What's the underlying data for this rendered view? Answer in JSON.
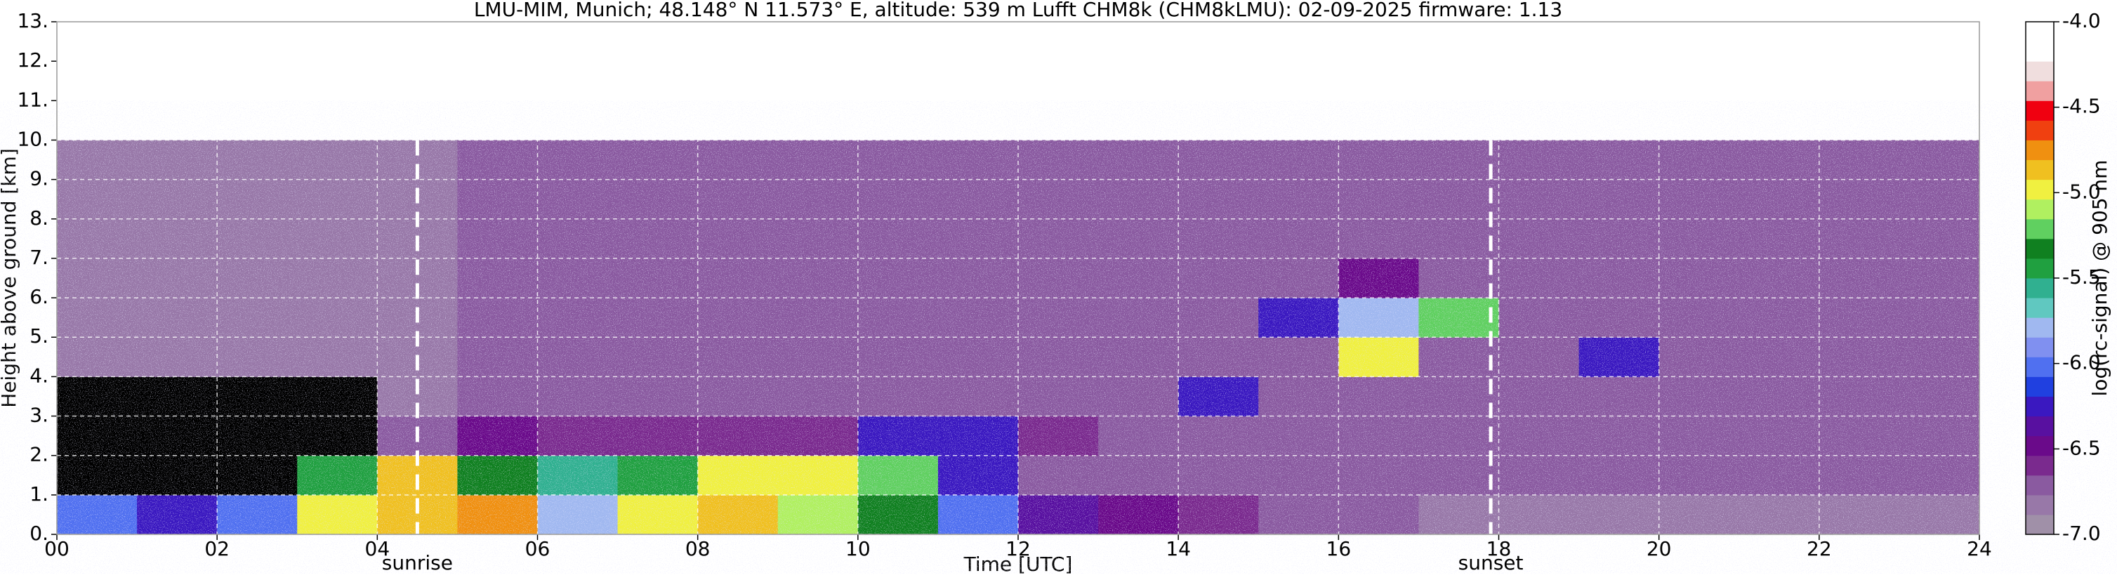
{
  "chart_data": {
    "type": "heatmap",
    "title": "LMU-MIM, Munich; 48.148° N 11.573° E, altitude: 539 m    Lufft CHM8k (CHM8kLMU): 02-09-2025    firmware: 1.13",
    "x_label": "Time [UTC]",
    "y_label": "Height above ground [km]",
    "xlim": [
      0,
      24
    ],
    "ylim": [
      0,
      13
    ],
    "xticks": [
      {
        "value": 0,
        "label": "00"
      },
      {
        "value": 2,
        "label": "02"
      },
      {
        "value": 4,
        "label": "04"
      },
      {
        "value": 6,
        "label": "06"
      },
      {
        "value": 8,
        "label": "08"
      },
      {
        "value": 10,
        "label": "10"
      },
      {
        "value": 12,
        "label": "12"
      },
      {
        "value": 14,
        "label": "14"
      },
      {
        "value": 16,
        "label": "16"
      },
      {
        "value": 18,
        "label": "18"
      },
      {
        "value": 20,
        "label": "20"
      },
      {
        "value": 22,
        "label": "22"
      },
      {
        "value": 24,
        "label": "24"
      }
    ],
    "yticks": [
      {
        "value": 0,
        "label": "0."
      },
      {
        "value": 1,
        "label": "1."
      },
      {
        "value": 2,
        "label": "2."
      },
      {
        "value": 3,
        "label": "3."
      },
      {
        "value": 4,
        "label": "4."
      },
      {
        "value": 5,
        "label": "5."
      },
      {
        "value": 6,
        "label": "6."
      },
      {
        "value": 7,
        "label": "7."
      },
      {
        "value": 8,
        "label": "8."
      },
      {
        "value": 9,
        "label": "9."
      },
      {
        "value": 10,
        "label": "10."
      },
      {
        "value": 11,
        "label": "11."
      },
      {
        "value": 12,
        "label": "12."
      },
      {
        "value": 13,
        "label": "13."
      }
    ],
    "grid": true,
    "x_bins": [
      0,
      1,
      2,
      3,
      4,
      5,
      6,
      7,
      8,
      9,
      10,
      11,
      12,
      13,
      14,
      15,
      16,
      17,
      18,
      19,
      20,
      21,
      22,
      23,
      24
    ],
    "y_bins": [
      0,
      1,
      2,
      3,
      4,
      5,
      6,
      7,
      8,
      9,
      10
    ],
    "z": [
      [
        -6.0,
        -6.2,
        -6.0,
        -5.0,
        -4.9,
        -4.8,
        -5.8,
        -5.0,
        -4.9,
        -5.1,
        -5.3,
        -6.0,
        -6.4,
        -6.5,
        -6.6,
        -6.7,
        -6.7,
        -6.8,
        -6.8,
        -6.8,
        -6.8,
        -6.8,
        -6.8,
        -6.8
      ],
      [
        null,
        null,
        null,
        -5.4,
        -4.9,
        -5.3,
        -5.6,
        -5.5,
        -5.0,
        -5.0,
        -5.2,
        -6.3,
        -6.7,
        -6.7,
        -6.7,
        -6.7,
        -6.7,
        -6.7,
        -6.7,
        -6.7,
        -6.7,
        -6.7,
        -6.7,
        -6.7
      ],
      [
        null,
        null,
        null,
        null,
        -6.7,
        -6.5,
        -6.6,
        -6.6,
        -6.6,
        -6.6,
        -6.3,
        -6.3,
        -6.6,
        -6.7,
        -6.7,
        -6.7,
        -6.7,
        -6.7,
        -6.7,
        -6.7,
        -6.7,
        -6.7,
        -6.7,
        -6.7
      ],
      [
        null,
        null,
        null,
        null,
        -6.8,
        -6.7,
        -6.7,
        -6.7,
        -6.7,
        -6.7,
        -6.7,
        -6.7,
        -6.7,
        -6.7,
        -6.2,
        -6.7,
        -6.7,
        -6.7,
        -6.7,
        -6.7,
        -6.7,
        -6.7,
        -6.7,
        -6.7
      ],
      [
        -6.8,
        -6.8,
        -6.8,
        -6.8,
        -6.8,
        -6.7,
        -6.7,
        -6.7,
        -6.7,
        -6.7,
        -6.7,
        -6.7,
        -6.7,
        -6.7,
        -6.7,
        -6.7,
        -5.0,
        -6.7,
        -6.7,
        -6.2,
        -6.7,
        -6.7,
        -6.7,
        -6.7
      ],
      [
        -6.8,
        -6.8,
        -6.8,
        -6.8,
        -6.8,
        -6.7,
        -6.7,
        -6.7,
        -6.7,
        -6.7,
        -6.7,
        -6.7,
        -6.7,
        -6.7,
        -6.7,
        -6.3,
        -5.8,
        -5.2,
        -6.7,
        -6.7,
        -6.7,
        -6.7,
        -6.7,
        -6.7
      ],
      [
        -6.8,
        -6.8,
        -6.8,
        -6.8,
        -6.8,
        -6.7,
        -6.7,
        -6.7,
        -6.7,
        -6.7,
        -6.7,
        -6.7,
        -6.7,
        -6.7,
        -6.7,
        -6.7,
        -6.5,
        -6.7,
        -6.7,
        -6.7,
        -6.7,
        -6.7,
        -6.7,
        -6.7
      ],
      [
        -6.8,
        -6.8,
        -6.8,
        -6.8,
        -6.8,
        -6.7,
        -6.7,
        -6.7,
        -6.7,
        -6.7,
        -6.7,
        -6.7,
        -6.7,
        -6.7,
        -6.7,
        -6.7,
        -6.7,
        -6.7,
        -6.7,
        -6.7,
        -6.7,
        -6.7,
        -6.7,
        -6.7
      ],
      [
        -6.8,
        -6.8,
        -6.8,
        -6.8,
        -6.8,
        -6.7,
        -6.7,
        -6.7,
        -6.7,
        -6.7,
        -6.7,
        -6.7,
        -6.7,
        -6.7,
        -6.7,
        -6.7,
        -6.7,
        -6.7,
        -6.7,
        -6.7,
        -6.7,
        -6.7,
        -6.7,
        -6.7
      ],
      [
        -6.8,
        -6.8,
        -6.8,
        -6.8,
        -6.8,
        -6.7,
        -6.7,
        -6.7,
        -6.7,
        -6.7,
        -6.7,
        -6.7,
        -6.7,
        -6.7,
        -6.7,
        -6.7,
        -6.7,
        -6.7,
        -6.7,
        -6.7,
        -6.7,
        -6.7,
        -6.7,
        -6.7
      ]
    ],
    "annotations": [
      {
        "text": "sunrise",
        "x": 4.5
      },
      {
        "text": "sunset",
        "x": 17.9
      }
    ],
    "colorbar": {
      "label": "log(rc-signal) @ 905 nm",
      "lim": [
        -7.0,
        -4.0
      ],
      "ticks": [
        {
          "value": -7,
          "label": "-7.0"
        },
        {
          "value": -6.5,
          "label": "-6.5"
        },
        {
          "value": -6,
          "label": "-6.0"
        },
        {
          "value": -5.5,
          "label": "-5.5"
        },
        {
          "value": -5,
          "label": "-5.0"
        },
        {
          "value": -4.5,
          "label": "-4.5"
        },
        {
          "value": -4,
          "label": "-4.0"
        }
      ],
      "colors": [
        "#a090a8",
        "#9878a8",
        "#8a5aa0",
        "#7a2a8e",
        "#6a0a8a",
        "#5810a0",
        "#3a18c0",
        "#2040e0",
        "#5070f0",
        "#8090f0",
        "#a0b8f0",
        "#60c8c0",
        "#30b090",
        "#20a040",
        "#108020",
        "#60d060",
        "#b0f060",
        "#f0f040",
        "#f0c020",
        "#f09010",
        "#f04010",
        "#f00010",
        "#f0a0a0",
        "#f0dede",
        "#ffffff",
        "#ffffff"
      ],
      "no_signal_color": "#000000"
    }
  }
}
